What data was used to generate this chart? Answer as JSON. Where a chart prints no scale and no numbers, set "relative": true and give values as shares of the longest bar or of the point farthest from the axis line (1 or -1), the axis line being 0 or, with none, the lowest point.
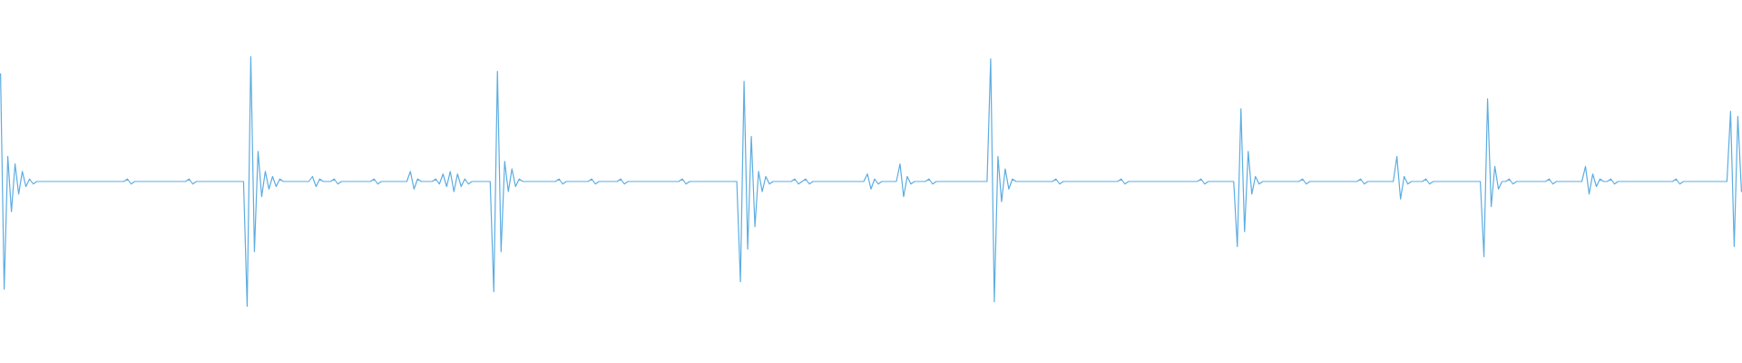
{
  "chart_data": {
    "type": "line",
    "relative": true,
    "marker": "none",
    "color": "#5dade2",
    "categories": [
      null,
      null,
      null,
      null,
      null,
      null,
      null,
      null,
      null,
      null,
      null,
      null,
      null,
      null,
      null,
      null,
      null,
      null,
      null,
      null,
      null,
      null,
      null,
      null,
      null,
      null,
      null,
      null,
      null,
      null,
      null,
      null,
      null,
      null,
      null,
      null,
      null,
      null,
      null,
      null,
      null,
      null,
      null,
      null,
      null,
      null,
      null,
      null,
      null,
      null,
      null,
      null,
      null,
      null,
      null,
      null,
      null,
      null,
      null,
      null,
      null,
      null,
      null,
      null,
      null,
      null,
      null,
      null,
      null,
      null,
      null,
      null,
      null,
      null,
      null,
      null,
      null,
      null,
      null,
      null,
      null,
      null,
      null,
      null,
      null,
      null,
      null,
      null,
      null,
      null,
      null,
      null,
      null,
      null,
      null,
      null,
      null,
      null,
      null,
      null,
      null,
      null,
      null,
      null,
      null,
      null,
      null,
      null,
      null,
      null,
      null,
      null,
      null,
      null,
      null,
      null,
      null,
      null,
      null,
      null,
      null,
      null,
      null,
      null,
      null,
      null,
      null,
      null,
      null,
      null,
      null,
      null,
      null,
      null,
      null,
      null,
      null,
      null,
      null,
      null,
      null,
      null,
      null,
      null,
      null,
      null,
      null,
      null,
      null,
      null,
      null,
      null,
      null,
      null,
      null,
      null,
      null,
      null,
      null,
      null,
      null,
      null,
      null,
      null,
      null,
      null,
      null,
      null,
      null,
      null,
      null,
      null,
      null,
      null,
      null,
      null,
      null,
      null,
      null,
      null,
      null,
      null,
      null,
      null,
      null,
      null,
      null,
      null,
      null,
      null,
      null,
      null,
      null,
      null,
      null,
      null,
      null,
      null,
      null,
      null,
      null,
      null,
      null,
      null,
      null,
      null,
      null,
      null,
      null,
      null,
      null,
      null,
      null,
      null,
      null,
      null,
      null,
      null,
      null,
      null,
      null,
      null,
      null,
      null,
      null,
      null,
      null,
      null,
      null,
      null,
      null,
      null,
      null,
      null,
      null,
      null,
      null,
      null,
      null,
      null,
      null,
      null,
      null,
      null,
      null,
      null,
      null,
      null,
      null,
      null,
      null,
      null,
      null,
      null,
      null,
      null,
      null,
      null,
      null,
      null,
      null,
      null,
      null,
      null,
      null,
      null,
      null,
      null,
      null,
      null,
      null,
      null,
      null,
      null,
      null,
      null,
      null,
      null,
      null,
      null,
      null,
      null,
      null,
      null,
      null,
      null,
      null,
      null,
      null,
      null,
      null,
      null,
      null,
      null,
      null,
      null,
      null,
      null,
      null,
      null,
      null,
      null,
      null,
      null,
      null,
      null,
      null,
      null,
      null,
      null,
      null,
      null,
      null,
      null,
      null,
      null,
      null,
      null,
      null,
      null,
      null,
      null,
      null,
      null,
      null,
      null,
      null,
      null,
      null,
      null,
      null,
      null,
      null,
      null,
      null,
      null,
      null,
      null,
      null,
      null,
      null,
      null,
      null,
      null,
      null,
      null,
      null,
      null,
      null,
      null,
      null,
      null,
      null,
      null,
      null,
      null,
      null,
      null,
      null,
      null,
      null,
      null,
      null,
      null,
      null,
      null,
      null,
      null,
      null,
      null,
      null,
      null,
      null,
      null,
      null,
      null,
      null,
      null,
      null,
      null,
      null,
      null,
      null,
      null,
      null,
      null,
      null,
      null,
      null,
      null,
      null,
      null,
      null,
      null,
      null,
      null,
      null,
      null,
      null,
      null,
      null,
      null,
      null,
      null,
      null,
      null,
      null,
      null,
      null,
      null,
      null,
      null,
      null,
      null,
      null,
      null,
      null,
      null,
      null,
      null,
      null,
      null,
      null,
      null,
      null,
      null,
      null,
      null,
      null,
      null,
      null,
      null,
      null,
      null,
      null,
      null,
      null,
      null,
      null,
      null,
      null,
      null,
      null,
      null,
      null,
      null,
      null,
      null,
      null,
      null,
      null,
      null,
      null,
      null,
      null,
      null,
      null,
      null,
      null,
      null,
      null,
      null,
      null,
      null,
      null,
      null,
      null,
      null,
      null,
      null,
      null,
      null,
      null,
      null,
      null,
      null,
      null,
      null,
      null,
      null,
      null
    ],
    "values": [
      0.93,
      0.07,
      0.6,
      0.38,
      0.57,
      0.45,
      0.54,
      0.48,
      0.51,
      0.49,
      0.5,
      0.5,
      0.5,
      0.5,
      0.5,
      0.5,
      0.5,
      0.5,
      0.5,
      0.5,
      0.5,
      0.5,
      0.5,
      0.5,
      0.5,
      0.5,
      0.5,
      0.5,
      0.5,
      0.5,
      0.5,
      0.5,
      0.5,
      0.5,
      0.5,
      0.51,
      0.49,
      0.5,
      0.5,
      0.5,
      0.5,
      0.5,
      0.5,
      0.5,
      0.5,
      0.5,
      0.5,
      0.5,
      0.5,
      0.5,
      0.5,
      0.5,
      0.51,
      0.49,
      0.5,
      0.5,
      0.5,
      0.5,
      0.5,
      0.5,
      0.5,
      0.5,
      0.5,
      0.5,
      0.5,
      0.5,
      0.5,
      0.5,
      0.0,
      1.0,
      0.22,
      0.62,
      0.44,
      0.54,
      0.47,
      0.52,
      0.48,
      0.51,
      0.5,
      0.5,
      0.5,
      0.5,
      0.5,
      0.5,
      0.5,
      0.5,
      0.52,
      0.48,
      0.51,
      0.5,
      0.5,
      0.5,
      0.51,
      0.49,
      0.5,
      0.5,
      0.5,
      0.5,
      0.5,
      0.5,
      0.5,
      0.5,
      0.5,
      0.51,
      0.49,
      0.5,
      0.5,
      0.5,
      0.5,
      0.5,
      0.5,
      0.5,
      0.5,
      0.54,
      0.47,
      0.51,
      0.5,
      0.5,
      0.5,
      0.5,
      0.51,
      0.49,
      0.53,
      0.48,
      0.54,
      0.46,
      0.53,
      0.48,
      0.51,
      0.49,
      0.5,
      0.5,
      0.5,
      0.5,
      0.5,
      0.5,
      0.06,
      0.94,
      0.22,
      0.58,
      0.46,
      0.55,
      0.48,
      0.51,
      0.5,
      0.5,
      0.5,
      0.5,
      0.5,
      0.5,
      0.5,
      0.5,
      0.5,
      0.5,
      0.51,
      0.49,
      0.5,
      0.5,
      0.5,
      0.5,
      0.5,
      0.5,
      0.5,
      0.51,
      0.49,
      0.5,
      0.5,
      0.5,
      0.5,
      0.5,
      0.5,
      0.51,
      0.49,
      0.5,
      0.5,
      0.5,
      0.5,
      0.5,
      0.5,
      0.5,
      0.5,
      0.5,
      0.5,
      0.5,
      0.5,
      0.5,
      0.5,
      0.5,
      0.51,
      0.49,
      0.5,
      0.5,
      0.5,
      0.5,
      0.5,
      0.5,
      0.5,
      0.5,
      0.5,
      0.5,
      0.5,
      0.5,
      0.5,
      0.5,
      0.1,
      0.9,
      0.23,
      0.68,
      0.32,
      0.54,
      0.46,
      0.52,
      0.49,
      0.5,
      0.5,
      0.5,
      0.5,
      0.5,
      0.5,
      0.51,
      0.49,
      0.5,
      0.51,
      0.49,
      0.5,
      0.5,
      0.5,
      0.5,
      0.5,
      0.5,
      0.5,
      0.5,
      0.5,
      0.5,
      0.5,
      0.5,
      0.5,
      0.5,
      0.5,
      0.53,
      0.47,
      0.51,
      0.49,
      0.5,
      0.5,
      0.5,
      0.5,
      0.5,
      0.57,
      0.44,
      0.52,
      0.49,
      0.5,
      0.5,
      0.5,
      0.5,
      0.51,
      0.49,
      0.5,
      0.5,
      0.5,
      0.5,
      0.5,
      0.5,
      0.5,
      0.5,
      0.5,
      0.5,
      0.5,
      0.5,
      0.5,
      0.5,
      0.5,
      0.99,
      0.02,
      0.6,
      0.42,
      0.55,
      0.47,
      0.51,
      0.5,
      0.5,
      0.5,
      0.5,
      0.5,
      0.5,
      0.5,
      0.5,
      0.5,
      0.5,
      0.5,
      0.51,
      0.49,
      0.5,
      0.5,
      0.5,
      0.5,
      0.5,
      0.5,
      0.5,
      0.5,
      0.5,
      0.5,
      0.5,
      0.5,
      0.5,
      0.5,
      0.5,
      0.5,
      0.51,
      0.49,
      0.5,
      0.5,
      0.5,
      0.5,
      0.5,
      0.5,
      0.5,
      0.5,
      0.5,
      0.5,
      0.5,
      0.5,
      0.5,
      0.5,
      0.5,
      0.5,
      0.5,
      0.5,
      0.5,
      0.5,
      0.51,
      0.49,
      0.5,
      0.5,
      0.5,
      0.5,
      0.5,
      0.5,
      0.5,
      0.5,
      0.24,
      0.79,
      0.3,
      0.62,
      0.45,
      0.52,
      0.49,
      0.5,
      0.5,
      0.5,
      0.5,
      0.5,
      0.5,
      0.5,
      0.5,
      0.5,
      0.5,
      0.5,
      0.51,
      0.49,
      0.5,
      0.5,
      0.5,
      0.5,
      0.5,
      0.5,
      0.5,
      0.5,
      0.5,
      0.5,
      0.5,
      0.5,
      0.5,
      0.5,
      0.51,
      0.49,
      0.5,
      0.5,
      0.5,
      0.5,
      0.5,
      0.5,
      0.5,
      0.5,
      0.6,
      0.43,
      0.52,
      0.49,
      0.5,
      0.5,
      0.5,
      0.5,
      0.51,
      0.49,
      0.5,
      0.5,
      0.5,
      0.5,
      0.5,
      0.5,
      0.5,
      0.5,
      0.5,
      0.5,
      0.5,
      0.5,
      0.5,
      0.5,
      0.2,
      0.83,
      0.4,
      0.56,
      0.47,
      0.5,
      0.5,
      0.51,
      0.49,
      0.5,
      0.5,
      0.5,
      0.5,
      0.5,
      0.5,
      0.5,
      0.5,
      0.5,
      0.51,
      0.49,
      0.5,
      0.5,
      0.5,
      0.5,
      0.5,
      0.5,
      0.5,
      0.5,
      0.56,
      0.45,
      0.53,
      0.48,
      0.51,
      0.5,
      0.5,
      0.51,
      0.49,
      0.5,
      0.5,
      0.5,
      0.5,
      0.5,
      0.5,
      0.5,
      0.5,
      0.5,
      0.5,
      0.5,
      0.5,
      0.5,
      0.5,
      0.5,
      0.5,
      0.51,
      0.49,
      0.5,
      0.5,
      0.5,
      0.5,
      0.5,
      0.5,
      0.5,
      0.5,
      0.5,
      0.5,
      0.5,
      0.5,
      0.5,
      0.78,
      0.24,
      0.76,
      0.46
    ]
  }
}
